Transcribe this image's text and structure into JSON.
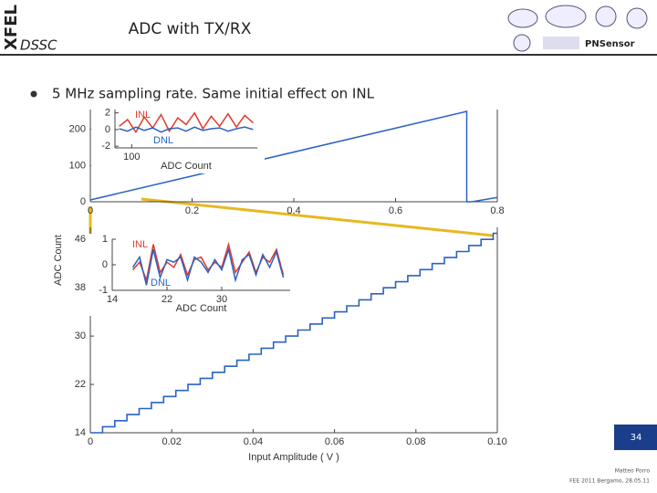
{
  "slide": {
    "brand": "XFEL",
    "project": "DSSC",
    "title": "ADC with TX/RX",
    "bullet": "5 MHz sampling rate. Same initial effect on INL",
    "logo_text": "PNSensor",
    "page_number": "34",
    "author": "Matteo Porro",
    "event": "FEE 2011 Bergamo, 28.05.11"
  },
  "chart_data": [
    {
      "type": "line",
      "xlim": [
        0,
        0.8
      ],
      "xticks": [
        0,
        0.2,
        0.4,
        0.6,
        0.8
      ],
      "ylim": [
        0,
        255
      ],
      "yticks": [
        0,
        100,
        200
      ],
      "series": [
        {
          "color": "#2a62c4",
          "x": [
            0,
            0.74,
            0.74,
            0.75,
            0.8
          ],
          "values": [
            5,
            250,
            0,
            0,
            12
          ]
        }
      ]
    },
    {
      "type": "step",
      "xlabel": "Input Amplitude ( V )",
      "ylabel": "ADC Count",
      "xlim": [
        0,
        0.1
      ],
      "xticks": [
        0,
        0.02,
        0.04,
        0.06,
        0.08,
        {
          "value": 0.1,
          "label": "0.10"
        }
      ],
      "ylim": [
        14,
        48
      ],
      "yticks": [
        14,
        22,
        30,
        38,
        46
      ],
      "series": [
        {
          "color": "#2a62c4",
          "x": [
            0,
            0.003,
            0.006,
            0.009,
            0.012,
            0.015,
            0.018,
            0.021,
            0.024,
            0.027,
            0.03,
            0.033,
            0.036,
            0.039,
            0.042,
            0.045,
            0.048,
            0.051,
            0.054,
            0.057,
            0.06,
            0.063,
            0.066,
            0.069,
            0.072,
            0.075,
            0.078,
            0.081,
            0.084,
            0.087,
            0.09,
            0.093,
            0.096,
            0.099
          ],
          "values": [
            14,
            15,
            16,
            17,
            18,
            19,
            20,
            21,
            22,
            23,
            24,
            25,
            26,
            27,
            28,
            29,
            30,
            31,
            32,
            33,
            34,
            35,
            36,
            37,
            38,
            39,
            40,
            41,
            42,
            43,
            44,
            45,
            46,
            47
          ]
        }
      ]
    },
    {
      "type": "line",
      "xlabel": "ADC Count",
      "xlim": [
        80,
        250
      ],
      "xticks": [
        100
      ],
      "ylim": [
        -2.2,
        2.4
      ],
      "yticks": [
        2,
        0,
        -2
      ],
      "series": [
        {
          "name": "INL",
          "color": "#e03a2a",
          "x": [
            85,
            95,
            105,
            115,
            125,
            135,
            145,
            155,
            165,
            175,
            185,
            195,
            205,
            215,
            225,
            235,
            245
          ],
          "values": [
            0.4,
            1.2,
            -0.3,
            1.5,
            0.2,
            1.8,
            -0.2,
            1.4,
            0.6,
            2.0,
            0.1,
            1.6,
            0.4,
            1.9,
            0.3,
            1.7,
            0.8
          ]
        },
        {
          "name": "DNL",
          "color": "#2a62c4",
          "x": [
            85,
            95,
            105,
            115,
            125,
            135,
            145,
            155,
            165,
            175,
            185,
            195,
            205,
            215,
            225,
            235,
            245
          ],
          "values": [
            0.1,
            -0.2,
            0.3,
            -0.1,
            0.2,
            -0.3,
            0.1,
            0.2,
            -0.2,
            0.3,
            -0.1,
            0.1,
            0.2,
            -0.2,
            0.1,
            0.3,
            0
          ]
        }
      ]
    },
    {
      "type": "line",
      "xlabel": "ADC Count",
      "xlim": [
        14,
        40
      ],
      "xticks": [
        14,
        22,
        30
      ],
      "ylim": [
        -1,
        1
      ],
      "yticks": [
        1,
        0,
        -1
      ],
      "series": [
        {
          "name": "INL",
          "color": "#e03a2a",
          "x": [
            17,
            18,
            19,
            20,
            21,
            22,
            23,
            24,
            25,
            26,
            27,
            28,
            29,
            30,
            31,
            32,
            33,
            34,
            35,
            36,
            37,
            38,
            39
          ],
          "values": [
            -0.2,
            0.1,
            -0.6,
            0.8,
            -0.3,
            0.1,
            -0.1,
            0.4,
            -0.4,
            0.2,
            0.3,
            -0.2,
            0.1,
            -0.1,
            0.8,
            -0.3,
            0.1,
            0.5,
            -0.3,
            0.3,
            0.1,
            0.6,
            -0.4
          ]
        },
        {
          "name": "DNL",
          "color": "#2a62c4",
          "x": [
            17,
            18,
            19,
            20,
            21,
            22,
            23,
            24,
            25,
            26,
            27,
            28,
            29,
            30,
            31,
            32,
            33,
            34,
            35,
            36,
            37,
            38,
            39
          ],
          "values": [
            -0.1,
            0.3,
            -0.8,
            0.6,
            -0.5,
            0.2,
            0.1,
            0.3,
            -0.6,
            0.3,
            0.1,
            -0.3,
            0.2,
            -0.2,
            0.6,
            -0.6,
            0.2,
            0.4,
            -0.4,
            0.4,
            -0.1,
            0.5,
            -0.5
          ]
        }
      ]
    }
  ]
}
